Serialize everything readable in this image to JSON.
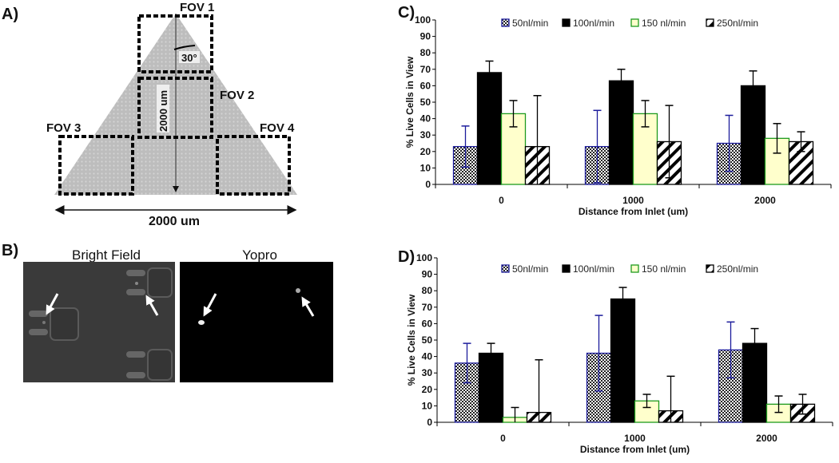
{
  "panel_a": {
    "label": "A)",
    "fov1": "FOV 1",
    "fov2": "FOV 2",
    "fov3": "FOV 3",
    "fov4": "FOV 4",
    "angle": "30°",
    "height_label": "2000 um",
    "width_label": "2000 um"
  },
  "panel_b": {
    "label": "B)",
    "bright_field": "Bright Field",
    "yopro": "Yopro"
  },
  "colors": {
    "s50_border": "#1c1c9c",
    "s100": "#000000",
    "s150_fill": "#ffffcc",
    "s150_border": "#1e9a1e",
    "s250": "#000000"
  },
  "chart_data": [
    {
      "panel": "C)",
      "type": "bar",
      "title": "",
      "xlabel": "Distance from Inlet (um)",
      "ylabel": "% Live Cells in View",
      "ylim": [
        0,
        100
      ],
      "yticks": [
        "0",
        "10",
        "20",
        "30",
        "40",
        "50",
        "60",
        "70",
        "80",
        "90",
        "100"
      ],
      "categories": [
        "0",
        "1000",
        "2000"
      ],
      "legend_position": "top-center",
      "series": [
        {
          "name": "50nl/min",
          "values": [
            23,
            23,
            25
          ],
          "errors": [
            12.5,
            22,
            17
          ]
        },
        {
          "name": "100nl/min",
          "values": [
            68,
            63,
            60
          ],
          "errors": [
            7,
            7,
            9
          ]
        },
        {
          "name": "150 nl/min",
          "values": [
            43,
            43,
            28
          ],
          "errors": [
            8,
            8,
            9
          ]
        },
        {
          "name": "250nl/min",
          "values": [
            23,
            26,
            26
          ],
          "errors": [
            31,
            22,
            6
          ]
        }
      ]
    },
    {
      "panel": "D)",
      "type": "bar",
      "title": "",
      "xlabel": "Distance from Inlet (um)",
      "ylabel": "% Live Cells in View",
      "ylim": [
        0,
        100
      ],
      "yticks": [
        "0",
        "10",
        "20",
        "30",
        "40",
        "50",
        "60",
        "70",
        "80",
        "90",
        "100"
      ],
      "categories": [
        "0",
        "1000",
        "2000"
      ],
      "legend_position": "top-center",
      "series": [
        {
          "name": "50nl/min",
          "values": [
            36,
            42,
            44
          ],
          "errors": [
            12,
            23,
            17
          ]
        },
        {
          "name": "100nl/min",
          "values": [
            42,
            75,
            48
          ],
          "errors": [
            6,
            7,
            9
          ]
        },
        {
          "name": "150 nl/min",
          "values": [
            3,
            13,
            11
          ],
          "errors": [
            6,
            4,
            5
          ]
        },
        {
          "name": "250nl/min",
          "values": [
            6,
            7,
            11
          ],
          "errors": [
            32,
            21,
            6
          ]
        }
      ]
    }
  ]
}
